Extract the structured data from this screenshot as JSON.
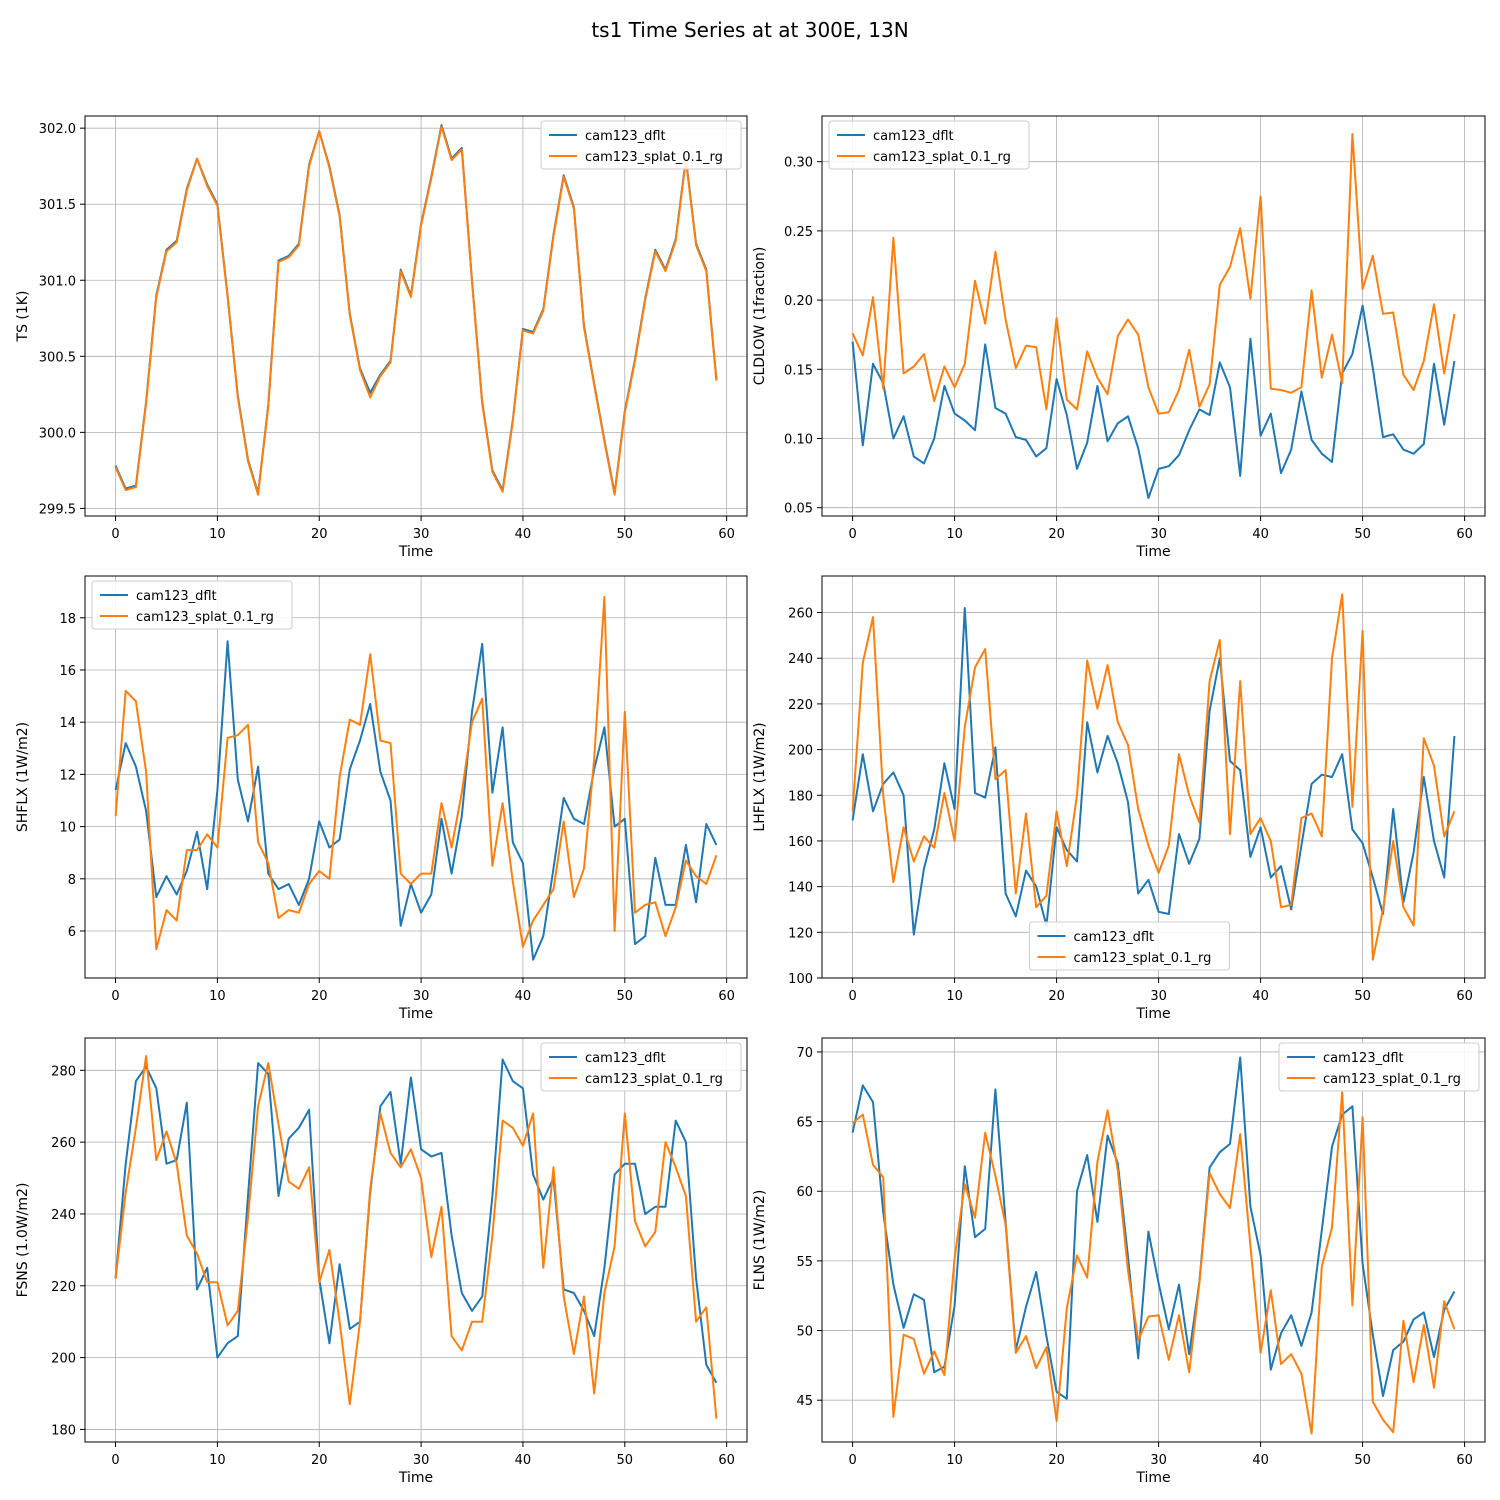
{
  "figure": {
    "suptitle": "ts1 Time Series at at 300E, 13N"
  },
  "colors": {
    "series1": "#1f77b4",
    "series2": "#ff7f0e",
    "grid": "#b0b0b0",
    "axis": "#000000"
  },
  "chart_data": [
    {
      "type": "line",
      "title": "",
      "xlabel": "Time",
      "ylabel": "TS (1K)",
      "xlim": [
        -3,
        62
      ],
      "ylim": [
        299.45,
        302.08
      ],
      "xticks": [
        0,
        10,
        20,
        30,
        40,
        50,
        60
      ],
      "yticks": [
        299.5,
        300.0,
        300.5,
        301.0,
        301.5,
        302.0
      ],
      "ytick_labels": [
        "299.5",
        "300.0",
        "300.5",
        "301.0",
        "301.5",
        "302.0"
      ],
      "grid": true,
      "legend_position": "upper right",
      "series": [
        {
          "name": "cam123_dflt",
          "values": [
            299.78,
            299.63,
            299.65,
            300.2,
            300.9,
            301.2,
            301.26,
            301.6,
            301.8,
            301.63,
            301.5,
            300.9,
            300.24,
            299.82,
            299.6,
            300.18,
            301.13,
            301.16,
            301.24,
            301.76,
            301.98,
            301.75,
            301.43,
            300.78,
            300.42,
            300.26,
            300.38,
            300.47,
            301.07,
            300.9,
            301.37,
            301.68,
            302.02,
            301.8,
            301.87,
            301.0,
            300.2,
            299.75,
            299.62,
            300.08,
            300.68,
            300.66,
            300.81,
            301.3,
            301.69,
            301.48,
            300.7,
            300.32,
            299.95,
            299.6,
            300.14,
            300.48,
            300.88,
            301.2,
            301.07,
            301.27,
            301.8,
            301.24,
            301.07,
            300.35
          ]
        },
        {
          "name": "cam123_splat_0.1_rg",
          "values": [
            299.77,
            299.62,
            299.64,
            300.19,
            300.89,
            301.19,
            301.25,
            301.59,
            301.8,
            301.62,
            301.49,
            300.89,
            300.23,
            299.81,
            299.59,
            300.17,
            301.12,
            301.15,
            301.23,
            301.75,
            301.98,
            301.74,
            301.42,
            300.77,
            300.41,
            300.23,
            300.37,
            300.46,
            301.06,
            300.89,
            301.36,
            301.67,
            302.01,
            301.79,
            301.86,
            300.99,
            300.19,
            299.74,
            299.61,
            300.07,
            300.67,
            300.65,
            300.8,
            301.29,
            301.68,
            301.47,
            300.69,
            300.31,
            299.94,
            299.59,
            300.13,
            300.47,
            300.87,
            301.19,
            301.06,
            301.26,
            301.79,
            301.23,
            301.06,
            300.34
          ]
        }
      ]
    },
    {
      "type": "line",
      "title": "",
      "xlabel": "Time",
      "ylabel": "CLDLOW (1fraction)",
      "xlim": [
        -3,
        62
      ],
      "ylim": [
        0.044,
        0.333
      ],
      "xticks": [
        0,
        10,
        20,
        30,
        40,
        50,
        60
      ],
      "yticks": [
        0.05,
        0.1,
        0.15,
        0.2,
        0.25,
        0.3
      ],
      "ytick_labels": [
        "0.05",
        "0.10",
        "0.15",
        "0.20",
        "0.25",
        "0.30"
      ],
      "grid": true,
      "legend_position": "upper left",
      "series": [
        {
          "name": "cam123_dflt",
          "values": [
            0.17,
            0.095,
            0.154,
            0.14,
            0.1,
            0.116,
            0.087,
            0.082,
            0.1,
            0.138,
            0.118,
            0.113,
            0.106,
            0.168,
            0.122,
            0.118,
            0.101,
            0.099,
            0.087,
            0.093,
            0.143,
            0.117,
            0.078,
            0.097,
            0.138,
            0.098,
            0.111,
            0.116,
            0.093,
            0.057,
            0.078,
            0.08,
            0.088,
            0.106,
            0.121,
            0.117,
            0.155,
            0.137,
            0.073,
            0.172,
            0.102,
            0.118,
            0.075,
            0.092,
            0.134,
            0.099,
            0.089,
            0.083,
            0.147,
            0.161,
            0.196,
            0.151,
            0.101,
            0.103,
            0.092,
            0.089,
            0.096,
            0.154,
            0.11,
            0.156
          ]
        },
        {
          "name": "cam123_splat_0.1_rg",
          "values": [
            0.176,
            0.16,
            0.202,
            0.136,
            0.245,
            0.147,
            0.152,
            0.161,
            0.127,
            0.152,
            0.137,
            0.154,
            0.214,
            0.183,
            0.235,
            0.186,
            0.151,
            0.167,
            0.166,
            0.121,
            0.187,
            0.128,
            0.121,
            0.163,
            0.144,
            0.132,
            0.174,
            0.186,
            0.175,
            0.137,
            0.118,
            0.119,
            0.135,
            0.164,
            0.123,
            0.139,
            0.211,
            0.224,
            0.252,
            0.201,
            0.275,
            0.136,
            0.135,
            0.133,
            0.137,
            0.207,
            0.144,
            0.175,
            0.14,
            0.32,
            0.208,
            0.232,
            0.19,
            0.191,
            0.146,
            0.135,
            0.156,
            0.197,
            0.147,
            0.19
          ]
        }
      ]
    },
    {
      "type": "line",
      "title": "",
      "xlabel": "Time",
      "ylabel": "SHFLX (1W/m2)",
      "xlim": [
        -3,
        62
      ],
      "ylim": [
        4.2,
        19.6
      ],
      "xticks": [
        0,
        10,
        20,
        30,
        40,
        50,
        60
      ],
      "yticks": [
        6,
        8,
        10,
        12,
        14,
        16,
        18
      ],
      "ytick_labels": [
        "6",
        "8",
        "10",
        "12",
        "14",
        "16",
        "18"
      ],
      "grid": true,
      "legend_position": "upper left",
      "series": [
        {
          "name": "cam123_dflt",
          "values": [
            11.4,
            13.2,
            12.3,
            10.6,
            7.3,
            8.1,
            7.4,
            8.3,
            9.8,
            7.6,
            11.4,
            17.1,
            11.8,
            10.2,
            12.3,
            8.2,
            7.6,
            7.8,
            7.0,
            8.0,
            10.2,
            9.2,
            9.5,
            12.2,
            13.3,
            14.7,
            12.1,
            11.0,
            6.2,
            7.8,
            6.7,
            7.4,
            10.3,
            8.2,
            10.4,
            14.4,
            17.0,
            11.3,
            13.8,
            9.4,
            8.6,
            4.9,
            5.8,
            8.4,
            11.1,
            10.3,
            10.1,
            12.2,
            13.8,
            10.0,
            10.3,
            5.5,
            5.8,
            8.8,
            7.0,
            7.0,
            9.3,
            7.1,
            10.1,
            9.3
          ]
        },
        {
          "name": "cam123_splat_0.1_rg",
          "values": [
            10.4,
            15.2,
            14.8,
            12.1,
            5.3,
            6.8,
            6.4,
            9.1,
            9.1,
            9.7,
            9.2,
            13.4,
            13.5,
            13.9,
            9.4,
            8.6,
            6.5,
            6.8,
            6.7,
            7.8,
            8.3,
            8.0,
            11.9,
            14.1,
            13.9,
            16.6,
            13.3,
            13.2,
            8.2,
            7.8,
            8.2,
            8.2,
            10.9,
            9.2,
            11.3,
            14.0,
            14.9,
            8.5,
            10.9,
            7.9,
            5.4,
            6.4,
            7.0,
            7.6,
            10.2,
            7.3,
            8.4,
            12.6,
            18.8,
            6.0,
            14.4,
            6.7,
            7.0,
            7.1,
            5.8,
            6.9,
            8.7,
            8.1,
            7.8,
            8.9
          ]
        }
      ]
    },
    {
      "type": "line",
      "title": "",
      "xlabel": "Time",
      "ylabel": "LHFLX (1W/m2)",
      "xlim": [
        -3,
        62
      ],
      "ylim": [
        100,
        276
      ],
      "xticks": [
        0,
        10,
        20,
        30,
        40,
        50,
        60
      ],
      "yticks": [
        100,
        120,
        140,
        160,
        180,
        200,
        220,
        240,
        260
      ],
      "ytick_labels": [
        "100",
        "120",
        "140",
        "160",
        "180",
        "200",
        "220",
        "240",
        "260"
      ],
      "grid": true,
      "legend_position": "lower center",
      "series": [
        {
          "name": "cam123_dflt",
          "values": [
            169,
            198,
            173,
            185,
            190,
            180,
            119,
            148,
            165,
            194,
            174,
            262,
            181,
            179,
            201,
            137,
            127,
            147,
            140,
            123,
            166,
            156,
            151,
            212,
            190,
            206,
            194,
            177,
            137,
            143,
            129,
            128,
            163,
            150,
            161,
            217,
            240,
            195,
            191,
            153,
            166,
            144,
            149,
            130,
            158,
            185,
            189,
            188,
            198,
            165,
            159,
            144,
            128,
            174,
            133,
            155,
            188,
            160,
            144,
            206
          ]
        },
        {
          "name": "cam123_splat_0.1_rg",
          "values": [
            173,
            238,
            258,
            180,
            142,
            166,
            151,
            162,
            157,
            181,
            160,
            210,
            236,
            244,
            187,
            191,
            137,
            172,
            131,
            136,
            173,
            149,
            180,
            239,
            218,
            237,
            212,
            202,
            174,
            158,
            146,
            158,
            198,
            180,
            168,
            230,
            248,
            163,
            230,
            163,
            170,
            160,
            131,
            132,
            170,
            172,
            162,
            240,
            268,
            175,
            252,
            108,
            130,
            160,
            131,
            123,
            205,
            193,
            162,
            173
          ]
        }
      ]
    },
    {
      "type": "line",
      "title": "",
      "xlabel": "Time",
      "ylabel": "FSNS (1.0W/m2)",
      "xlim": [
        -3,
        62
      ],
      "ylim": [
        176.5,
        289
      ],
      "xticks": [
        0,
        10,
        20,
        30,
        40,
        50,
        60
      ],
      "yticks": [
        180,
        200,
        220,
        240,
        260,
        280
      ],
      "ytick_labels": [
        "180",
        "200",
        "220",
        "240",
        "260",
        "280"
      ],
      "grid": true,
      "legend_position": "upper right",
      "series": [
        {
          "name": "cam123_dflt",
          "values": [
            222,
            254,
            277,
            281,
            275,
            254,
            255,
            271,
            219,
            225,
            200,
            204,
            206,
            245,
            282,
            279,
            245,
            261,
            264,
            269,
            222,
            204,
            226,
            208,
            210,
            246,
            270,
            274,
            254,
            278,
            258,
            256,
            257,
            234,
            218,
            213,
            217,
            245,
            283,
            277,
            275,
            251,
            244,
            250,
            219,
            218,
            213,
            206,
            225,
            251,
            254,
            254,
            240,
            242,
            242,
            266,
            260,
            222,
            198,
            193
          ]
        },
        {
          "name": "cam123_splat_0.1_rg",
          "values": [
            222,
            246,
            264,
            284,
            255,
            263,
            254,
            234,
            229,
            221,
            221,
            209,
            213,
            239,
            270,
            282,
            265,
            249,
            247,
            253,
            221,
            230,
            210,
            187,
            210,
            247,
            268,
            257,
            253,
            258,
            250,
            228,
            242,
            206,
            202,
            210,
            210,
            234,
            266,
            264,
            259,
            268,
            225,
            253,
            217,
            201,
            217,
            190,
            218,
            231,
            268,
            238,
            231,
            235,
            260,
            253,
            245,
            210,
            214,
            183
          ]
        }
      ]
    },
    {
      "type": "line",
      "title": "",
      "xlabel": "Time",
      "ylabel": "FLNS (1W/m2)",
      "xlim": [
        -3,
        62
      ],
      "ylim": [
        42,
        71
      ],
      "xticks": [
        0,
        10,
        20,
        30,
        40,
        50,
        60
      ],
      "yticks": [
        45,
        50,
        55,
        60,
        65,
        70
      ],
      "ytick_labels": [
        "45",
        "50",
        "55",
        "60",
        "65",
        "70"
      ],
      "grid": true,
      "legend_position": "upper right",
      "series": [
        {
          "name": "cam123_dflt",
          "values": [
            64.2,
            67.6,
            66.4,
            58.5,
            53.3,
            50.2,
            52.6,
            52.2,
            47.0,
            47.4,
            51.8,
            61.8,
            56.7,
            57.3,
            67.3,
            57.8,
            48.6,
            51.7,
            54.2,
            49.6,
            45.6,
            45.1,
            60.0,
            62.6,
            57.8,
            64.0,
            62.0,
            55.3,
            48.0,
            57.1,
            53.4,
            50.1,
            53.3,
            48.3,
            53.5,
            61.7,
            62.8,
            63.4,
            69.6,
            58.9,
            55.4,
            47.2,
            49.8,
            51.1,
            48.9,
            51.3,
            57.2,
            63.2,
            65.5,
            66.1,
            54.8,
            49.7,
            45.3,
            48.6,
            49.2,
            50.8,
            51.3,
            48.1,
            51.5,
            52.8
          ]
        },
        {
          "name": "cam123_splat_0.1_rg",
          "values": [
            64.9,
            65.5,
            61.9,
            61.0,
            43.8,
            49.7,
            49.4,
            46.9,
            48.5,
            46.8,
            55.2,
            60.5,
            58.1,
            64.2,
            61.1,
            57.6,
            48.4,
            49.6,
            47.3,
            48.8,
            43.5,
            51.6,
            55.4,
            53.8,
            62.1,
            65.8,
            61.5,
            54.3,
            49.3,
            51.0,
            51.1,
            47.9,
            51.1,
            47.0,
            53.4,
            61.3,
            59.8,
            58.8,
            64.1,
            56.1,
            48.4,
            52.9,
            47.6,
            48.3,
            46.9,
            42.6,
            54.6,
            57.4,
            67.1,
            51.8,
            65.3,
            44.9,
            43.6,
            42.7,
            50.7,
            46.3,
            50.4,
            45.9,
            52.1,
            50.1
          ]
        }
      ]
    }
  ]
}
